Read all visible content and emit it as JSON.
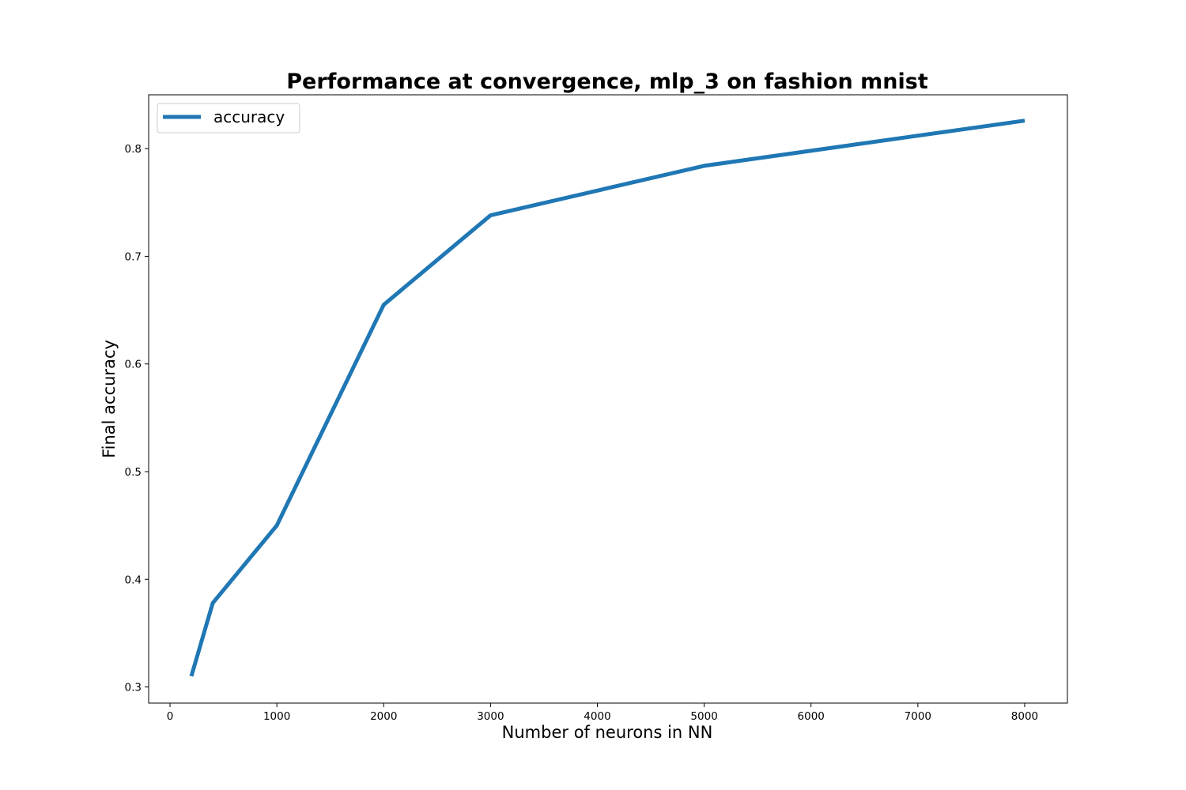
{
  "chart_data": {
    "type": "line",
    "title": "Performance at convergence, mlp_3 on fashion mnist",
    "xlabel": "Number of neurons in NN",
    "ylabel": "Final accuracy",
    "xlim": [
      -200,
      8400
    ],
    "ylim": [
      0.285,
      0.85
    ],
    "xticks": [
      0,
      1000,
      2000,
      3000,
      4000,
      5000,
      6000,
      7000,
      8000
    ],
    "xtick_labels": [
      "0",
      "1000",
      "2000",
      "3000",
      "4000",
      "5000",
      "6000",
      "7000",
      "8000"
    ],
    "yticks": [
      0.3,
      0.4,
      0.5,
      0.6,
      0.7,
      0.8
    ],
    "ytick_labels": [
      "0.3",
      "0.4",
      "0.5",
      "0.6",
      "0.7",
      "0.8"
    ],
    "grid": false,
    "legend_position": "top-left",
    "series": [
      {
        "name": "accuracy",
        "color": "#1f77b4",
        "x": [
          200,
          400,
          1000,
          2000,
          3000,
          5000,
          8000
        ],
        "y": [
          0.31,
          0.378,
          0.45,
          0.655,
          0.738,
          0.784,
          0.826
        ]
      }
    ]
  }
}
